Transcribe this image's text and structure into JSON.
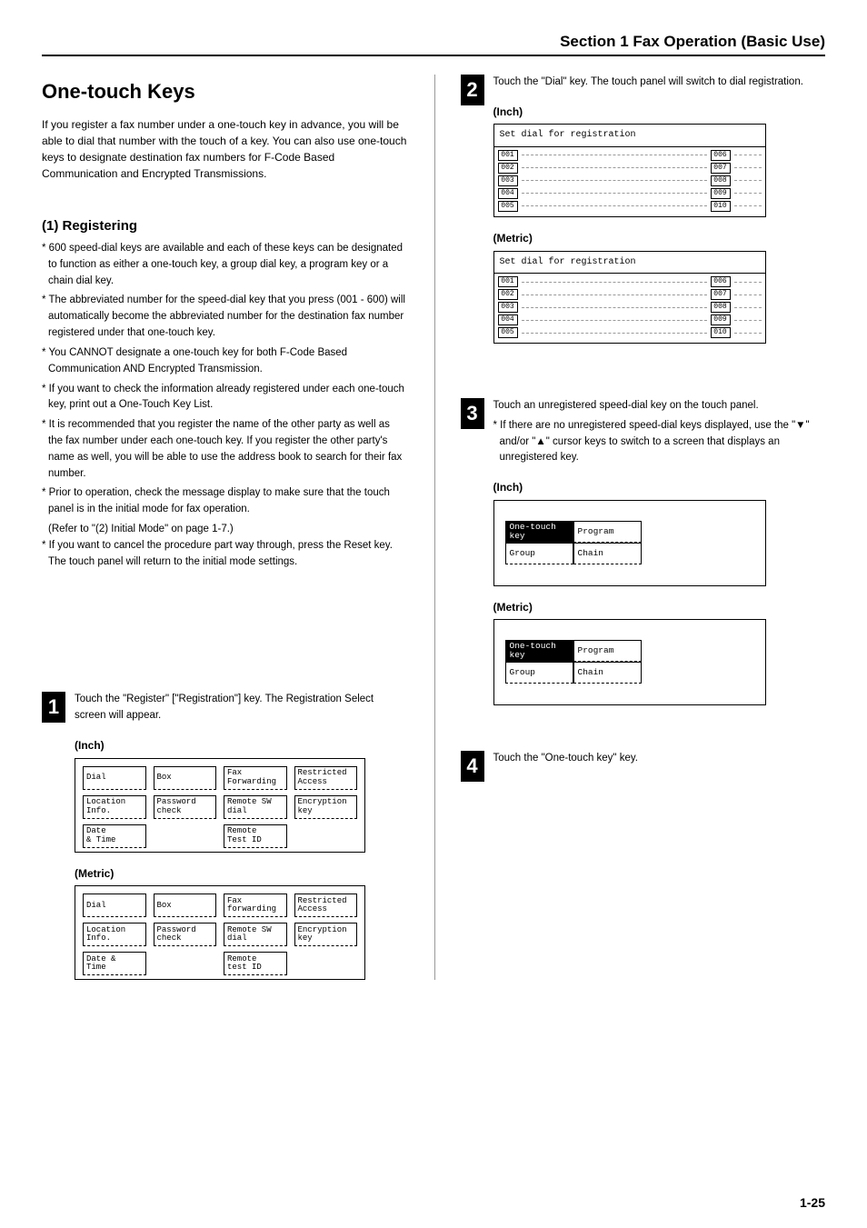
{
  "page": {
    "section_header": "Section 1  Fax Operation (Basic Use)",
    "title": "One-touch Keys",
    "intro": "If you register a fax number under a one-touch key in advance, you will be able to dial that number with the touch of a key. You can also use one-touch keys to designate destination fax numbers for F-Code Based Communication and Encrypted Transmissions.",
    "sub_heading": "(1) Registering",
    "page_number": "1-25"
  },
  "notes": [
    "600 speed-dial keys are available and each of these keys can be designated to function as either a one-touch key, a group dial key, a program key or a chain dial key.",
    "The abbreviated number for the speed-dial key that you press (001 - 600) will automatically become the abbreviated number for the destination fax number registered under that one-touch key.",
    "You CANNOT designate a one-touch key for both F-Code Based Communication AND Encrypted Transmission.",
    "If you want to check the information already registered under each one-touch key, print out a One-Touch Key List.",
    "It is recommended that you register the name of the other party as well as the fax number under each one-touch key. If you register the other party's name as well, you will be able to use the address book to search for their fax number.",
    "Prior to operation, check the message display to make sure that the touch panel is in the initial mode for fax operation."
  ],
  "notes_ref": "(Refer to \"(2) Initial Mode\" on page 1-7.)",
  "notes_tail": [
    "If you want to cancel the procedure part way through, press the Reset key. The touch panel will return to the initial mode settings."
  ],
  "steps": {
    "s1": {
      "num": "1",
      "text": "Touch the \"Register\" [\"Registration\"] key. The Registration Select screen will appear."
    },
    "s2": {
      "num": "2",
      "text": "Touch the \"Dial\" key. The touch panel will switch to dial registration."
    },
    "s3": {
      "num": "3",
      "text": "Touch an unregistered speed-dial key on the touch panel.",
      "sub": "If there are no unregistered speed-dial keys displayed, use the \"▼\" and/or \"▲\" cursor keys to switch to a screen that displays an unregistered key."
    },
    "s4": {
      "num": "4",
      "text": "Touch the \"One-touch key\" key."
    }
  },
  "labels": {
    "inch": "(Inch)",
    "metric": "(Metric)"
  },
  "reg_panel": {
    "inch": [
      "Dial",
      "Box",
      "Fax\nForwarding",
      "Restricted\nAccess",
      "Location\nInfo.",
      "Password\ncheck",
      "Remote SW\ndial",
      "Encryption\nkey",
      "Date\n& Time",
      "",
      "Remote\nTest ID",
      ""
    ],
    "metric": [
      "Dial",
      "Box",
      "Fax\nforwarding",
      "Restricted\nAccess",
      "Location\nInfo.",
      "Password\ncheck",
      "Remote SW\ndial",
      "Encryption\nkey",
      "Date &\nTime",
      "",
      "Remote\ntest ID",
      ""
    ]
  },
  "dial_panel": {
    "title": "Set dial for registration",
    "left": [
      "001",
      "002",
      "003",
      "004",
      "005"
    ],
    "right": [
      "006",
      "007",
      "008",
      "009",
      "010"
    ]
  },
  "type_panel": {
    "btns": [
      "One-touch\nkey",
      "Program",
      "Group",
      "Chain"
    ]
  }
}
